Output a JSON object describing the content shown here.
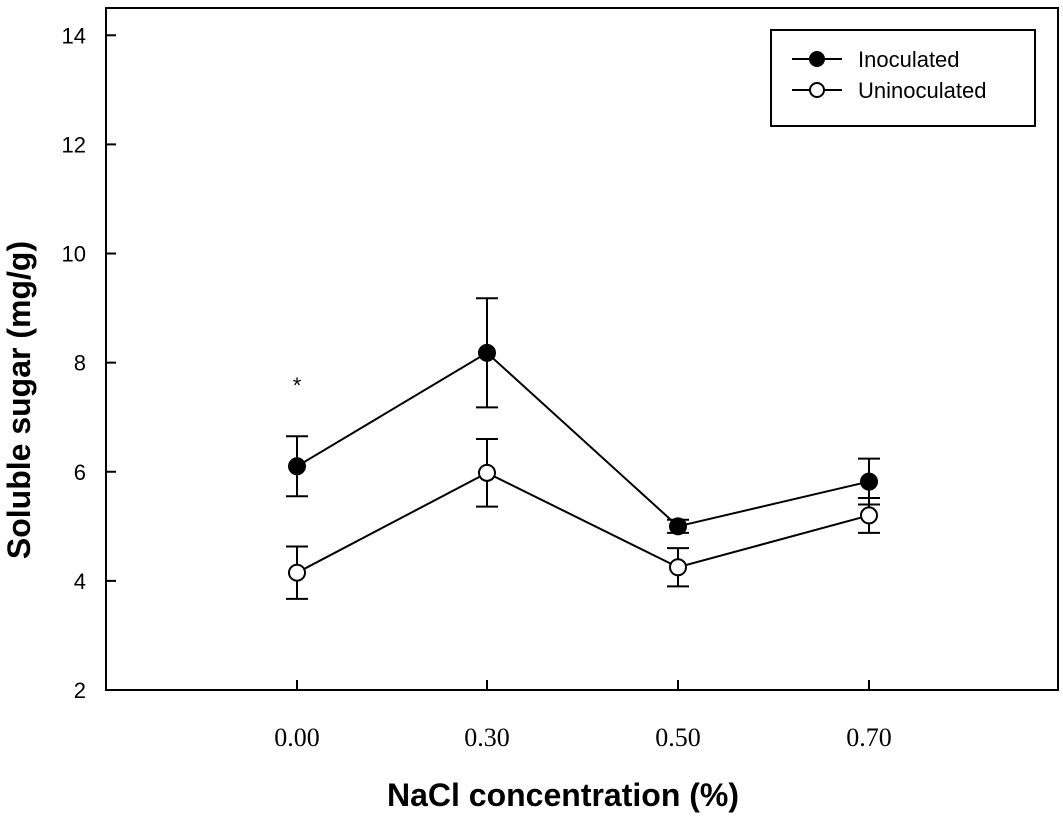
{
  "chart_data": {
    "type": "line",
    "title": "",
    "xlabel": "NaCl concentration (%)",
    "ylabel": "Soluble sugar (mg/g)",
    "categories": [
      "0.00",
      "0.30",
      "0.50",
      "0.70"
    ],
    "ylim": [
      2,
      14.5
    ],
    "yticks": [
      "2",
      "4",
      "6",
      "8",
      "10",
      "12",
      "14"
    ],
    "ytick_values": [
      2,
      4,
      6,
      8,
      10,
      12,
      14
    ],
    "grid": false,
    "legend_position": "top-right",
    "series": [
      {
        "name": "Inoculated",
        "marker": "filled-circle",
        "values": [
          6.1,
          8.18,
          5.0,
          5.82
        ],
        "errors": [
          0.55,
          1.0,
          0.12,
          0.42
        ]
      },
      {
        "name": "Uninoculated",
        "marker": "open-circle",
        "values": [
          4.15,
          5.98,
          4.25,
          5.2
        ],
        "errors": [
          0.48,
          0.62,
          0.35,
          0.32
        ]
      }
    ],
    "annotations": [
      {
        "text": "*",
        "category": "0.00",
        "y": 7.7
      }
    ]
  }
}
